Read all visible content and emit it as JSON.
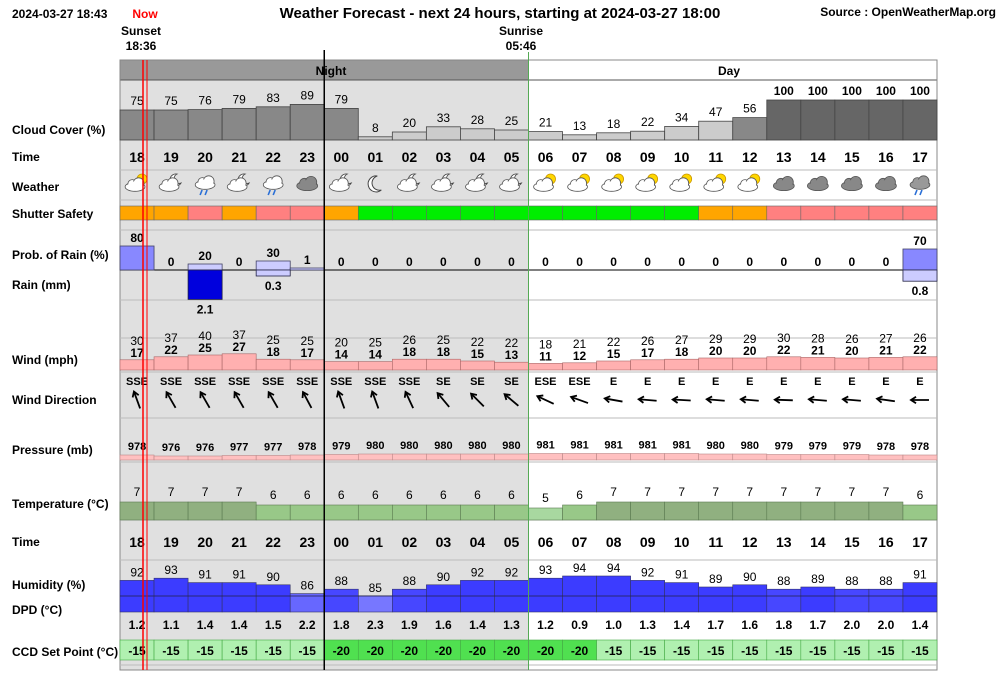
{
  "header": {
    "timestamp": "2024-03-27 18:43",
    "now_label": "Now",
    "title": "Weather Forecast - next 24 hours, starting at 2024-03-27 18:00",
    "source": "Source : OpenWeatherMap.org",
    "sunset_label": "Sunset",
    "sunset_time": "18:36",
    "sunrise_label": "Sunrise",
    "sunrise_time": "05:46"
  },
  "period_labels": {
    "night": "Night",
    "day": "Day"
  },
  "row_labels": {
    "cloud": "Cloud Cover (%)",
    "time": "Time",
    "weather": "Weather",
    "shutter": "Shutter Safety",
    "prob_rain": "Prob. of Rain (%)",
    "rain": "Rain (mm)",
    "wind": "Wind (mph)",
    "wind_dir": "Wind Direction",
    "pressure": "Pressure (mb)",
    "temperature": "Temperature (°C)",
    "time2": "Time",
    "humidity": "Humidity (%)",
    "dpd": "DPD (°C)",
    "ccd": "CCD Set Point (°C)"
  },
  "colors": {
    "night_bg": "#e0e0e0",
    "night_header": "#999999",
    "shutter_orange": "#ffa500",
    "shutter_red": "#ff8080",
    "shutter_green": "#00ee00",
    "rain_prob": "#8888ff",
    "rain_prob_light": "#ccccff",
    "rain_amount": "#0000dd",
    "wind": "#ffb0b0",
    "pressure": "#ffc0c0",
    "temp_dark": "#90b080",
    "temp_light": "#a8d8a0",
    "ccd": "#b0f0b0",
    "now_line": "#ff0000"
  },
  "chart_data": {
    "type": "table",
    "hours": [
      "18",
      "19",
      "20",
      "21",
      "22",
      "23",
      "00",
      "01",
      "02",
      "03",
      "04",
      "05",
      "06",
      "07",
      "08",
      "09",
      "10",
      "11",
      "12",
      "13",
      "14",
      "15",
      "16",
      "17"
    ],
    "night_hours": 12,
    "cloud_cover": [
      75,
      75,
      76,
      79,
      83,
      89,
      79,
      8,
      20,
      33,
      28,
      25,
      21,
      13,
      18,
      22,
      34,
      47,
      56,
      100,
      100,
      100,
      100,
      100
    ],
    "weather_icons": [
      "partly-cloudy-sun-icon",
      "cloudy-night-icon",
      "light-rain-icon",
      "cloudy-night-icon",
      "light-rain-icon",
      "overcast-icon",
      "cloudy-night-icon",
      "moon-icon",
      "cloudy-night-icon",
      "cloudy-night-icon",
      "cloudy-night-icon",
      "cloudy-night-icon",
      "partly-cloudy-sun-icon",
      "partly-cloudy-sun-icon",
      "partly-cloudy-sun-icon",
      "partly-cloudy-sun-icon",
      "partly-cloudy-sun-icon",
      "partly-cloudy-sun-icon",
      "partly-cloudy-sun-icon",
      "overcast-icon",
      "overcast-icon",
      "overcast-icon",
      "overcast-icon",
      "rain-icon"
    ],
    "shutter_safety": [
      "orange",
      "orange",
      "red",
      "orange",
      "red",
      "red",
      "orange",
      "green",
      "green",
      "green",
      "green",
      "green",
      "green",
      "green",
      "green",
      "green",
      "green",
      "orange",
      "orange",
      "red",
      "red",
      "red",
      "red",
      "red"
    ],
    "prob_rain": [
      80,
      0,
      20,
      0,
      30,
      1,
      0,
      0,
      0,
      0,
      0,
      0,
      0,
      0,
      0,
      0,
      0,
      0,
      0,
      0,
      0,
      0,
      0,
      70
    ],
    "rain_mm": [
      null,
      null,
      "2.1",
      null,
      "0.3",
      null,
      null,
      null,
      null,
      null,
      null,
      null,
      null,
      null,
      null,
      null,
      null,
      null,
      null,
      null,
      null,
      null,
      null,
      "0.8"
    ],
    "wind_gust": [
      30,
      37,
      40,
      37,
      25,
      25,
      20,
      25,
      26,
      25,
      22,
      22,
      18,
      21,
      22,
      26,
      27,
      29,
      29,
      30,
      28,
      26,
      27,
      26
    ],
    "wind_speed": [
      17,
      22,
      25,
      27,
      18,
      17,
      14,
      14,
      18,
      18,
      15,
      13,
      11,
      12,
      15,
      17,
      18,
      20,
      20,
      22,
      21,
      20,
      21,
      22
    ],
    "wind_direction": [
      "SSE",
      "SSE",
      "SSE",
      "SSE",
      "SSE",
      "SSE",
      "SSE",
      "SSE",
      "SSE",
      "SE",
      "SE",
      "SE",
      "ESE",
      "ESE",
      "E",
      "E",
      "E",
      "E",
      "E",
      "E",
      "E",
      "E",
      "E",
      "E"
    ],
    "wind_bearing": [
      160,
      150,
      150,
      150,
      150,
      152,
      160,
      160,
      155,
      140,
      135,
      130,
      115,
      110,
      100,
      95,
      93,
      95,
      95,
      92,
      95,
      95,
      98,
      90
    ],
    "pressure": [
      978,
      976,
      976,
      977,
      977,
      978,
      979,
      980,
      980,
      980,
      980,
      980,
      981,
      981,
      981,
      981,
      981,
      980,
      980,
      979,
      979,
      979,
      978,
      978
    ],
    "temperature": [
      7,
      7,
      7,
      7,
      6,
      6,
      6,
      6,
      6,
      6,
      6,
      6,
      5,
      6,
      7,
      7,
      7,
      7,
      7,
      7,
      7,
      7,
      7,
      6
    ],
    "humidity": [
      92,
      93,
      91,
      91,
      90,
      86,
      88,
      85,
      88,
      90,
      92,
      92,
      93,
      94,
      94,
      92,
      91,
      89,
      90,
      88,
      89,
      88,
      88,
      91
    ],
    "dpd": [
      "1.2",
      "1.1",
      "1.4",
      "1.4",
      "1.5",
      "2.2",
      "1.8",
      "2.3",
      "1.9",
      "1.6",
      "1.4",
      "1.3",
      "1.2",
      "0.9",
      "1.0",
      "1.3",
      "1.4",
      "1.7",
      "1.6",
      "1.8",
      "1.7",
      "2.0",
      "2.0",
      "1.4"
    ],
    "ccd_set_point": [
      -15,
      -15,
      -15,
      -15,
      -15,
      -15,
      -20,
      -20,
      -20,
      -20,
      -20,
      -20,
      -20,
      -20,
      -15,
      -15,
      -15,
      -15,
      -15,
      -15,
      -15,
      -15,
      -15,
      -15
    ]
  }
}
